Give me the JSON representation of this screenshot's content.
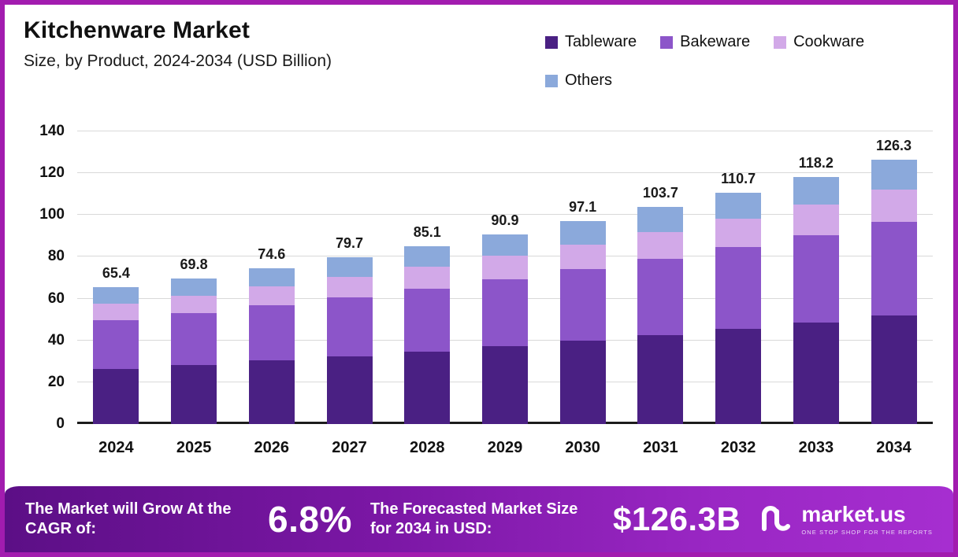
{
  "header": {
    "title": "Kitchenware Market",
    "subtitle": "Size, by Product, 2024-2034 (USD Billion)"
  },
  "chart_data": {
    "type": "bar",
    "stacked": true,
    "title": "Kitchenware Market Size, by Product, 2024-2034 (USD Billion)",
    "categories": [
      "2024",
      "2025",
      "2026",
      "2027",
      "2028",
      "2029",
      "2030",
      "2031",
      "2032",
      "2033",
      "2034"
    ],
    "series": [
      {
        "name": "Tableware",
        "color": "#4A2083",
        "values": [
          26.5,
          28.4,
          30.4,
          32.5,
          34.8,
          37.2,
          39.8,
          42.6,
          45.5,
          48.7,
          52.1
        ]
      },
      {
        "name": "Bakeware",
        "color": "#8C55C9",
        "values": [
          23.0,
          24.6,
          26.3,
          28.1,
          30.0,
          32.1,
          34.3,
          36.6,
          39.1,
          41.8,
          44.7
        ]
      },
      {
        "name": "Cookware",
        "color": "#D2A9E8",
        "values": [
          8.0,
          8.5,
          9.1,
          9.7,
          10.4,
          11.1,
          11.9,
          12.7,
          13.6,
          14.5,
          15.5
        ]
      },
      {
        "name": "Others",
        "color": "#8BA9DB",
        "values": [
          7.9,
          8.3,
          8.8,
          9.4,
          9.9,
          10.5,
          11.1,
          11.8,
          12.5,
          13.2,
          14.0
        ]
      }
    ],
    "totals": [
      "65.4",
      "69.8",
      "74.6",
      "79.7",
      "85.1",
      "90.9",
      "97.1",
      "103.7",
      "110.7",
      "118.2",
      "126.3"
    ],
    "ylim": [
      0,
      140
    ],
    "yticks": [
      0,
      20,
      40,
      60,
      80,
      100,
      120,
      140
    ],
    "grid": true,
    "legend_position": "top-right"
  },
  "banner": {
    "cagr_label": "The Market will Grow At the CAGR of:",
    "cagr_value": "6.8%",
    "forecast_label": "The Forecasted Market Size for 2034 in USD:",
    "forecast_value": "$126.3B",
    "logo_text": "market.us",
    "logo_tagline": "ONE STOP SHOP FOR THE REPORTS"
  },
  "colors": {
    "frame_border": "#A21CAF",
    "banner_gradient_start": "#5C0F86",
    "banner_gradient_end": "#A62ED0",
    "gridline": "#D9D9D9",
    "baseline": "#1C1C1C"
  }
}
